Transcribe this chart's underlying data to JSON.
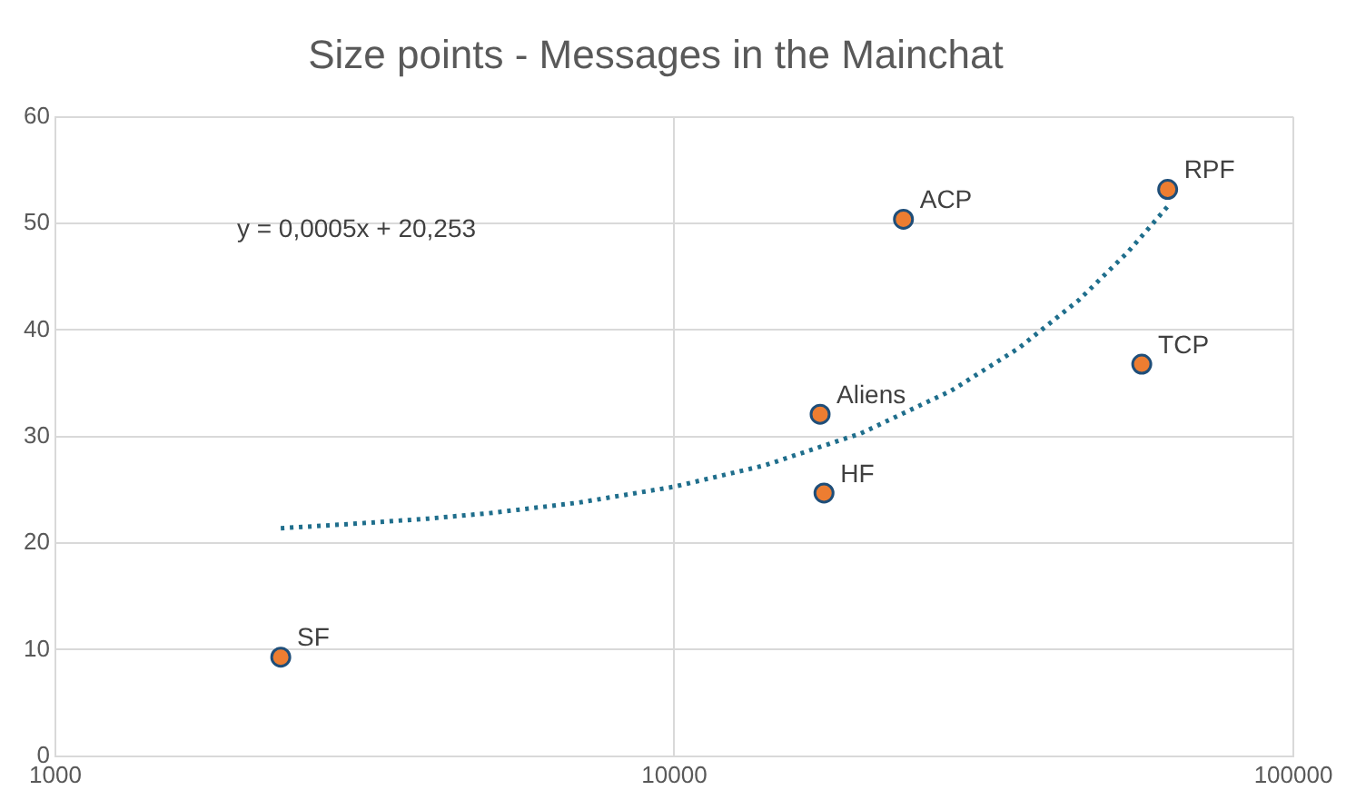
{
  "chart_data": {
    "type": "scatter",
    "title": "Size points - Messages in the Mainchat",
    "series": [
      {
        "type": "scatter",
        "color": "#ed7d31",
        "x": [
          2313,
          17200,
          17450,
          23450,
          56900,
          62660
        ],
        "values": [
          9.3,
          32.1,
          24.7,
          50.4,
          36.8,
          53.2
        ],
        "marker": "circle"
      },
      {
        "type": "line",
        "color": "#1f6e8c",
        "line_style": "dotted",
        "marker": "none",
        "x": [
          2313,
          3000,
          4000,
          5000,
          7000,
          10000,
          14000,
          20000,
          28000,
          36000,
          45000,
          54000,
          62660
        ],
        "values": [
          21.4,
          21.8,
          22.3,
          22.8,
          23.8,
          25.3,
          27.3,
          30.3,
          34.3,
          38.3,
          42.8,
          47.3,
          51.6
        ]
      }
    ],
    "annotations": [
      "y = 0,0005x + 20,253",
      {
        "text": "SF",
        "x": 2313,
        "y": 9.3
      },
      {
        "text": "Aliens",
        "x": 17200,
        "y": 32.1
      },
      {
        "text": "HF",
        "x": 17450,
        "y": 24.7
      },
      {
        "text": "ACP",
        "x": 23450,
        "y": 50.4
      },
      {
        "text": "TCP",
        "x": 56900,
        "y": 36.8
      },
      {
        "text": "RPF",
        "x": 62660,
        "y": 53.2
      }
    ],
    "log": "x",
    "xlim": [
      1000,
      100000
    ],
    "xticks": [
      1000,
      10000,
      100000
    ],
    "ylim": [
      0,
      60
    ],
    "yticks": [
      0,
      10,
      20,
      30,
      40,
      50,
      60
    ],
    "grid": true,
    "legend": false
  }
}
